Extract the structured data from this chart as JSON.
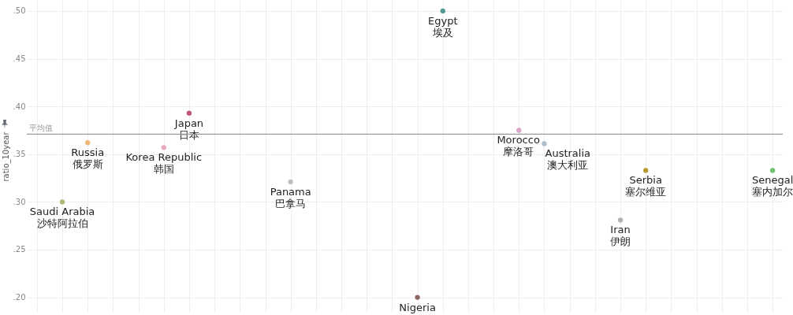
{
  "chart_data": {
    "type": "scatter",
    "ylabel": "ratio_10year",
    "categories": [
      null,
      null,
      null,
      null,
      null,
      null,
      null,
      null,
      null,
      null,
      null,
      null,
      null,
      null,
      null,
      null,
      null,
      null,
      null,
      null,
      null,
      null,
      null,
      null,
      null,
      null,
      null,
      null,
      null,
      null
    ],
    "ylim": [
      0.184,
      0.5115
    ],
    "yticks": [
      {
        "value": 0.2,
        "label": ".20"
      },
      {
        "value": 0.25,
        "label": ".25"
      },
      {
        "value": 0.3,
        "label": ".30"
      },
      {
        "value": 0.35,
        "label": ".35"
      },
      {
        "value": 0.4,
        "label": ".40"
      },
      {
        "value": 0.45,
        "label": ".45"
      },
      {
        "value": 0.5,
        "label": ".50"
      }
    ],
    "grid": true,
    "tick_labels": "y",
    "marker": "circle",
    "ref_lines": [
      {
        "axis": "y",
        "value": 0.371,
        "label": "平均值",
        "color": "#999999"
      }
    ],
    "series": [
      {
        "name": "Saudi Arabia\n沙特阿拉伯",
        "color": "#a9bb78",
        "values": [
          null,
          0.3,
          null,
          null,
          null,
          null,
          null,
          null,
          null,
          null,
          null,
          null,
          null,
          null,
          null,
          null,
          null,
          null,
          null,
          null,
          null,
          null,
          null,
          null,
          null,
          null,
          null,
          null,
          null,
          null
        ]
      },
      {
        "name": "Russia\n俄罗斯",
        "color": "#f0b877",
        "values": [
          null,
          null,
          0.362,
          null,
          null,
          null,
          null,
          null,
          null,
          null,
          null,
          null,
          null,
          null,
          null,
          null,
          null,
          null,
          null,
          null,
          null,
          null,
          null,
          null,
          null,
          null,
          null,
          null,
          null,
          null
        ]
      },
      {
        "name": "Korea Republic\n韩国",
        "color": "#e8a9bc",
        "values": [
          null,
          null,
          null,
          null,
          null,
          0.357,
          null,
          null,
          null,
          null,
          null,
          null,
          null,
          null,
          null,
          null,
          null,
          null,
          null,
          null,
          null,
          null,
          null,
          null,
          null,
          null,
          null,
          null,
          null,
          null
        ]
      },
      {
        "name": "Japan\n日本",
        "color": "#c0577a",
        "values": [
          null,
          null,
          null,
          null,
          null,
          null,
          0.393,
          null,
          null,
          null,
          null,
          null,
          null,
          null,
          null,
          null,
          null,
          null,
          null,
          null,
          null,
          null,
          null,
          null,
          null,
          null,
          null,
          null,
          null,
          null
        ]
      },
      {
        "name": "Panama\n巴拿马",
        "color": "#bfbfbf",
        "values": [
          null,
          null,
          null,
          null,
          null,
          null,
          null,
          null,
          null,
          null,
          0.321,
          null,
          null,
          null,
          null,
          null,
          null,
          null,
          null,
          null,
          null,
          null,
          null,
          null,
          null,
          null,
          null,
          null,
          null,
          null
        ]
      },
      {
        "name": "Nigeria",
        "color": "#8a6a60",
        "values": [
          null,
          null,
          null,
          null,
          null,
          null,
          null,
          null,
          null,
          null,
          null,
          null,
          null,
          null,
          null,
          0.2,
          null,
          null,
          null,
          null,
          null,
          null,
          null,
          null,
          null,
          null,
          null,
          null,
          null,
          null
        ]
      },
      {
        "name": "Egypt\n埃及",
        "color": "#4f9a94",
        "values": [
          null,
          null,
          null,
          null,
          null,
          null,
          null,
          null,
          null,
          null,
          null,
          null,
          null,
          null,
          null,
          null,
          0.5,
          null,
          null,
          null,
          null,
          null,
          null,
          null,
          null,
          null,
          null,
          null,
          null,
          null
        ]
      },
      {
        "name": "Morocco\n摩洛哥",
        "color": "#d9a3cc",
        "values": [
          null,
          null,
          null,
          null,
          null,
          null,
          null,
          null,
          null,
          null,
          null,
          null,
          null,
          null,
          null,
          null,
          null,
          null,
          null,
          0.375,
          null,
          null,
          null,
          null,
          null,
          null,
          null,
          null,
          null,
          null
        ]
      },
      {
        "name": "Australia\n澳大利亚",
        "color": "#aebdcd",
        "values": [
          null,
          null,
          null,
          null,
          null,
          null,
          null,
          null,
          null,
          null,
          null,
          null,
          null,
          null,
          null,
          null,
          null,
          null,
          null,
          null,
          0.361,
          null,
          null,
          null,
          null,
          null,
          null,
          null,
          null,
          null
        ]
      },
      {
        "name": "Iran\n伊朗",
        "color": "#b3b3b3",
        "values": [
          null,
          null,
          null,
          null,
          null,
          null,
          null,
          null,
          null,
          null,
          null,
          null,
          null,
          null,
          null,
          null,
          null,
          null,
          null,
          null,
          null,
          null,
          null,
          0.281,
          null,
          null,
          null,
          null,
          null,
          null
        ]
      },
      {
        "name": "Serbia\n塞尔维亚",
        "color": "#b89b2e",
        "values": [
          null,
          null,
          null,
          null,
          null,
          null,
          null,
          null,
          null,
          null,
          null,
          null,
          null,
          null,
          null,
          null,
          null,
          null,
          null,
          null,
          null,
          null,
          null,
          null,
          0.333,
          null,
          null,
          null,
          null,
          null
        ]
      },
      {
        "name": "Senegal\n塞内加尔",
        "color": "#6dc46a",
        "values": [
          null,
          null,
          null,
          null,
          null,
          null,
          null,
          null,
          null,
          null,
          null,
          null,
          null,
          null,
          null,
          null,
          null,
          null,
          null,
          null,
          null,
          null,
          null,
          null,
          null,
          null,
          null,
          null,
          null,
          0.333
        ]
      }
    ]
  }
}
